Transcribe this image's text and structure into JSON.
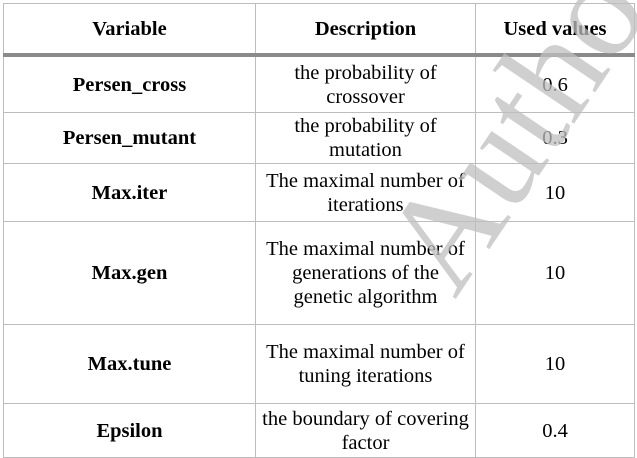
{
  "table": {
    "headers": [
      "Variable",
      "Description",
      "Used values"
    ],
    "rows": [
      {
        "variable": "Persen_cross",
        "description": "the probability of crossover",
        "value": "0.6"
      },
      {
        "variable": "Persen_mutant",
        "description": "the probability of mutation",
        "value": "0.3"
      },
      {
        "variable": "Max.iter",
        "description": "The maximal number of iterations",
        "value": "10"
      },
      {
        "variable": "Max.gen",
        "description": "The maximal number of generations of the genetic algorithm",
        "value": "10"
      },
      {
        "variable": "Max.tune",
        "description": "The maximal number of tuning iterations",
        "value": "10"
      },
      {
        "variable": "Epsilon",
        "description": "the boundary of covering factor",
        "value": "0.4"
      }
    ]
  },
  "watermark": {
    "text": "Autho",
    "color": "#bfbfbf"
  },
  "colors": {
    "grid": "#bdbdbd",
    "header_rule": "#8a8a8a"
  }
}
